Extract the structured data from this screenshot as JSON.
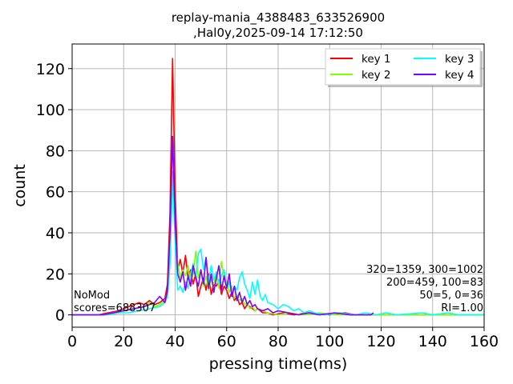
{
  "chart_data": {
    "type": "line",
    "title_line1": "replay-mania_4388483_633526900",
    "title_line2": ",Hal0y,2025-09-14 17:12:50",
    "xlabel": "pressing time(ms)",
    "ylabel": "count",
    "xlim": [
      0,
      160
    ],
    "ylim": [
      -6,
      132
    ],
    "xticks": [
      0,
      20,
      40,
      60,
      80,
      100,
      120,
      140,
      160
    ],
    "yticks": [
      0,
      20,
      40,
      60,
      80,
      100,
      120
    ],
    "grid": true,
    "legend_position": "top-right",
    "annotations": {
      "left_line1": "NoMod",
      "left_line2": "scores=688307",
      "right_line1": "320=1359, 300=1002",
      "right_line2": "200=459, 100=83",
      "right_line3": "50=5, 0=36",
      "right_line4": "RI=1.00"
    },
    "series": [
      {
        "name": "key 1",
        "color": "#ff0000",
        "points": [
          [
            0,
            0
          ],
          [
            10,
            0
          ],
          [
            14,
            1
          ],
          [
            18,
            2
          ],
          [
            22,
            4
          ],
          [
            26,
            6
          ],
          [
            28,
            5
          ],
          [
            30,
            7
          ],
          [
            32,
            5
          ],
          [
            34,
            6
          ],
          [
            36,
            8
          ],
          [
            37,
            15
          ],
          [
            38,
            50
          ],
          [
            39,
            125
          ],
          [
            40,
            60
          ],
          [
            41,
            22
          ],
          [
            42,
            27
          ],
          [
            43,
            20
          ],
          [
            44,
            29
          ],
          [
            45,
            18
          ],
          [
            46,
            22
          ],
          [
            47,
            15
          ],
          [
            48,
            20
          ],
          [
            49,
            9
          ],
          [
            50,
            14
          ],
          [
            51,
            18
          ],
          [
            52,
            12
          ],
          [
            53,
            20
          ],
          [
            54,
            10
          ],
          [
            55,
            15
          ],
          [
            56,
            14
          ],
          [
            57,
            17
          ],
          [
            58,
            10
          ],
          [
            59,
            14
          ],
          [
            60,
            12
          ],
          [
            61,
            8
          ],
          [
            62,
            11
          ],
          [
            63,
            7
          ],
          [
            64,
            9
          ],
          [
            65,
            5
          ],
          [
            66,
            6
          ],
          [
            67,
            3
          ],
          [
            68,
            5
          ],
          [
            69,
            4
          ],
          [
            70,
            3
          ],
          [
            71,
            2
          ],
          [
            72,
            3
          ],
          [
            74,
            1
          ],
          [
            76,
            1
          ],
          [
            78,
            0
          ],
          [
            82,
            1
          ],
          [
            86,
            0
          ],
          [
            92,
            1
          ],
          [
            100,
            0
          ],
          [
            106,
            1
          ],
          [
            110,
            0
          ],
          [
            160,
            0
          ]
        ]
      },
      {
        "name": "key 2",
        "color": "#80ff00",
        "points": [
          [
            0,
            0
          ],
          [
            12,
            0
          ],
          [
            16,
            1
          ],
          [
            20,
            2
          ],
          [
            24,
            3
          ],
          [
            28,
            4
          ],
          [
            30,
            6
          ],
          [
            32,
            4
          ],
          [
            34,
            5
          ],
          [
            36,
            7
          ],
          [
            37,
            10
          ],
          [
            38,
            30
          ],
          [
            39,
            65
          ],
          [
            40,
            40
          ],
          [
            41,
            25
          ],
          [
            42,
            18
          ],
          [
            43,
            22
          ],
          [
            44,
            19
          ],
          [
            45,
            24
          ],
          [
            46,
            15
          ],
          [
            47,
            20
          ],
          [
            48,
            31
          ],
          [
            49,
            18
          ],
          [
            50,
            22
          ],
          [
            51,
            14
          ],
          [
            52,
            19
          ],
          [
            53,
            12
          ],
          [
            54,
            17
          ],
          [
            55,
            15
          ],
          [
            56,
            20
          ],
          [
            57,
            13
          ],
          [
            58,
            26
          ],
          [
            59,
            18
          ],
          [
            60,
            16
          ],
          [
            61,
            11
          ],
          [
            62,
            14
          ],
          [
            63,
            8
          ],
          [
            64,
            10
          ],
          [
            65,
            7
          ],
          [
            66,
            8
          ],
          [
            67,
            5
          ],
          [
            68,
            6
          ],
          [
            69,
            3
          ],
          [
            70,
            4
          ],
          [
            71,
            2
          ],
          [
            72,
            3
          ],
          [
            74,
            2
          ],
          [
            76,
            1
          ],
          [
            80,
            0
          ],
          [
            84,
            1
          ],
          [
            90,
            0
          ],
          [
            96,
            1
          ],
          [
            102,
            0
          ],
          [
            116,
            0
          ],
          [
            160,
            0
          ]
        ]
      },
      {
        "name": "key 3",
        "color": "#00ffff",
        "points": [
          [
            0,
            0
          ],
          [
            14,
            0
          ],
          [
            18,
            1
          ],
          [
            22,
            1
          ],
          [
            26,
            2
          ],
          [
            30,
            3
          ],
          [
            34,
            4
          ],
          [
            36,
            6
          ],
          [
            37,
            9
          ],
          [
            38,
            25
          ],
          [
            39,
            70
          ],
          [
            40,
            35
          ],
          [
            41,
            12
          ],
          [
            42,
            14
          ],
          [
            43,
            11
          ],
          [
            44,
            16
          ],
          [
            45,
            13
          ],
          [
            46,
            20
          ],
          [
            47,
            25
          ],
          [
            48,
            18
          ],
          [
            49,
            30
          ],
          [
            50,
            32
          ],
          [
            51,
            22
          ],
          [
            52,
            28
          ],
          [
            53,
            16
          ],
          [
            54,
            24
          ],
          [
            55,
            17
          ],
          [
            56,
            21
          ],
          [
            57,
            15
          ],
          [
            58,
            19
          ],
          [
            59,
            22
          ],
          [
            60,
            13
          ],
          [
            61,
            16
          ],
          [
            62,
            10
          ],
          [
            63,
            14
          ],
          [
            64,
            12
          ],
          [
            65,
            18
          ],
          [
            66,
            21
          ],
          [
            67,
            15
          ],
          [
            68,
            12
          ],
          [
            69,
            8
          ],
          [
            70,
            16
          ],
          [
            71,
            10
          ],
          [
            72,
            17
          ],
          [
            73,
            9
          ],
          [
            74,
            7
          ],
          [
            75,
            10
          ],
          [
            76,
            6
          ],
          [
            78,
            5
          ],
          [
            80,
            3
          ],
          [
            82,
            5
          ],
          [
            84,
            4
          ],
          [
            86,
            2
          ],
          [
            88,
            3
          ],
          [
            90,
            1
          ],
          [
            92,
            2
          ],
          [
            94,
            1
          ],
          [
            98,
            0
          ],
          [
            104,
            1
          ],
          [
            110,
            0
          ],
          [
            114,
            1
          ],
          [
            118,
            0
          ],
          [
            122,
            1
          ],
          [
            126,
            0
          ],
          [
            136,
            1
          ],
          [
            140,
            0
          ],
          [
            146,
            1
          ],
          [
            150,
            0
          ],
          [
            160,
            0
          ]
        ]
      },
      {
        "name": "key 4",
        "color": "#8000ff",
        "points": [
          [
            0,
            0
          ],
          [
            12,
            0
          ],
          [
            16,
            1
          ],
          [
            20,
            2
          ],
          [
            24,
            3
          ],
          [
            28,
            4
          ],
          [
            30,
            5
          ],
          [
            32,
            6
          ],
          [
            34,
            9
          ],
          [
            36,
            6
          ],
          [
            37,
            12
          ],
          [
            38,
            40
          ],
          [
            39,
            87
          ],
          [
            40,
            45
          ],
          [
            41,
            20
          ],
          [
            42,
            16
          ],
          [
            43,
            21
          ],
          [
            44,
            12
          ],
          [
            45,
            19
          ],
          [
            46,
            14
          ],
          [
            47,
            24
          ],
          [
            48,
            18
          ],
          [
            49,
            14
          ],
          [
            50,
            22
          ],
          [
            51,
            15
          ],
          [
            52,
            28
          ],
          [
            53,
            13
          ],
          [
            54,
            20
          ],
          [
            55,
            11
          ],
          [
            56,
            18
          ],
          [
            57,
            24
          ],
          [
            58,
            12
          ],
          [
            59,
            19
          ],
          [
            60,
            13
          ],
          [
            61,
            20
          ],
          [
            62,
            9
          ],
          [
            63,
            14
          ],
          [
            64,
            7
          ],
          [
            65,
            11
          ],
          [
            66,
            6
          ],
          [
            67,
            9
          ],
          [
            68,
            5
          ],
          [
            69,
            7
          ],
          [
            70,
            4
          ],
          [
            71,
            5
          ],
          [
            72,
            3
          ],
          [
            74,
            2
          ],
          [
            76,
            3
          ],
          [
            78,
            1
          ],
          [
            80,
            2
          ],
          [
            84,
            1
          ],
          [
            88,
            0
          ],
          [
            92,
            1
          ],
          [
            96,
            0
          ],
          [
            102,
            1
          ],
          [
            108,
            0
          ],
          [
            116,
            0
          ],
          [
            117,
            1
          ]
        ]
      }
    ]
  }
}
